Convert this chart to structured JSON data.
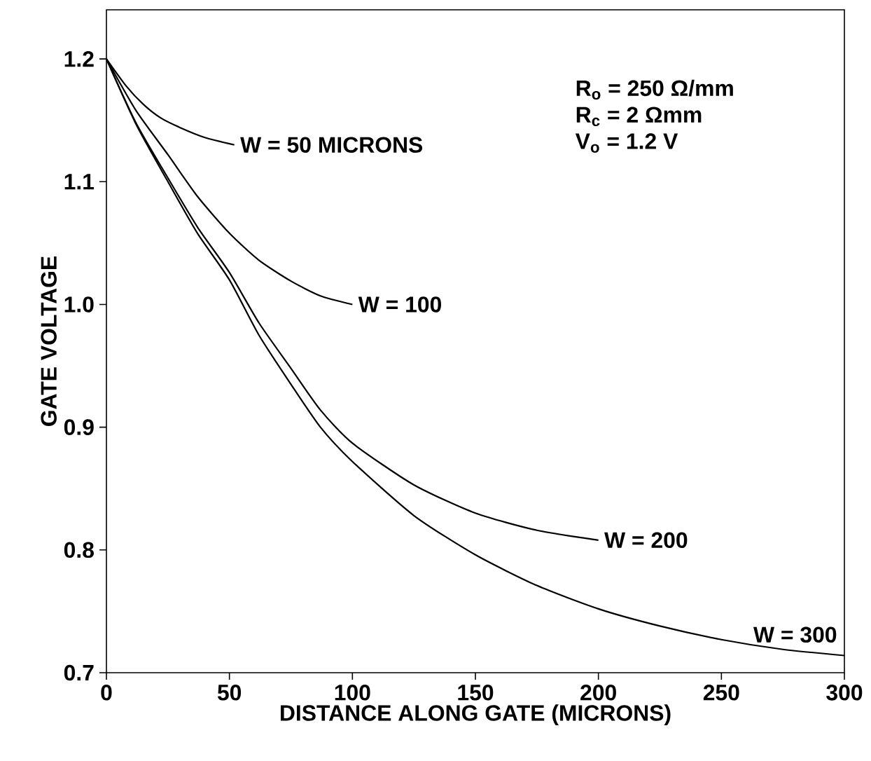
{
  "chart_data": {
    "type": "line",
    "xlabel": "DISTANCE ALONG GATE (MICRONS)",
    "ylabel": "GATE VOLTAGE",
    "xlim": [
      0,
      300
    ],
    "ylim": [
      0.7,
      1.24
    ],
    "xticks": [
      0,
      50,
      100,
      150,
      200,
      250,
      300
    ],
    "yticks": [
      0.7,
      0.8,
      0.9,
      {
        "value": 1.0,
        "label": "1.0"
      },
      1.1,
      1.2
    ],
    "grid": false,
    "legend": false,
    "marker": "none",
    "line_style": "solid",
    "annotations": [
      "R$_{o}$ = 250 Ω/mm",
      "R$_{c}$ = 2 Ωmm",
      "V$_{o}$ = 1.2 V"
    ],
    "series": [
      {
        "name": "W = 50 MICRONS",
        "color": "#000000",
        "x": [
          0,
          8,
          15,
          22,
          30,
          40,
          52
        ],
        "values": [
          1.2,
          1.178,
          1.163,
          1.152,
          1.144,
          1.136,
          1.13
        ]
      },
      {
        "name": "W = 100",
        "color": "#000000",
        "x": [
          0,
          12,
          25,
          37,
          50,
          62,
          75,
          87,
          100
        ],
        "values": [
          1.2,
          1.158,
          1.122,
          1.088,
          1.058,
          1.036,
          1.019,
          1.007,
          1.0
        ]
      },
      {
        "name": "W = 200",
        "color": "#000000",
        "x": [
          0,
          12,
          25,
          37,
          50,
          62,
          75,
          87,
          100,
          125,
          150,
          175,
          200
        ],
        "values": [
          1.2,
          1.148,
          1.103,
          1.063,
          1.026,
          0.985,
          0.948,
          0.914,
          0.887,
          0.853,
          0.83,
          0.816,
          0.808
        ]
      },
      {
        "name": "W = 300",
        "color": "#000000",
        "x": [
          0,
          12,
          25,
          37,
          50,
          62,
          75,
          87,
          100,
          125,
          150,
          175,
          200,
          225,
          250,
          275,
          300
        ],
        "values": [
          1.2,
          1.147,
          1.1,
          1.058,
          1.02,
          0.975,
          0.935,
          0.9,
          0.872,
          0.828,
          0.796,
          0.771,
          0.752,
          0.738,
          0.727,
          0.719,
          0.714
        ]
      }
    ]
  }
}
